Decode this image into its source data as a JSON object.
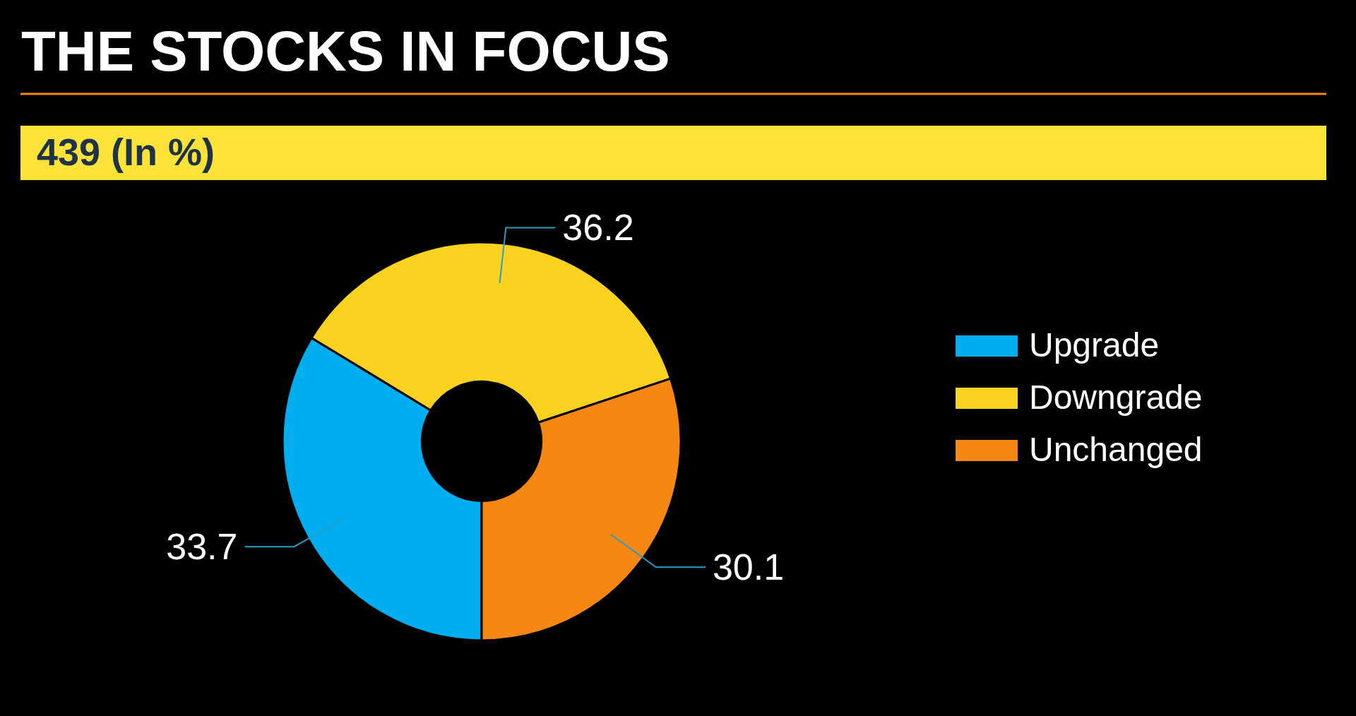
{
  "chart_data": {
    "type": "donut",
    "title": "THE STOCKS IN FOCUS",
    "subtitle": "439 (In %)",
    "categories": [
      "Upgrade",
      "Downgrade",
      "Unchanged"
    ],
    "values": [
      33.7,
      36.2,
      30.1
    ],
    "colors": [
      "#00aeef",
      "#f9d11f",
      "#f68712"
    ],
    "data_labels": true,
    "legend": "right"
  }
}
